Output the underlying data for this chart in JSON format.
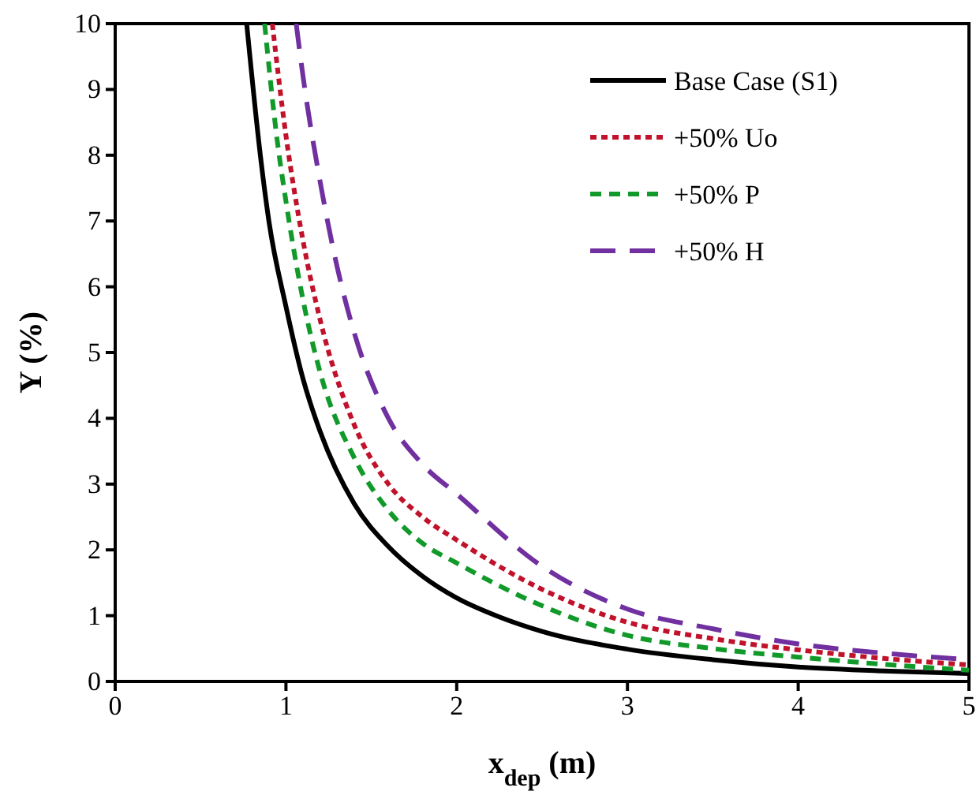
{
  "chart_data": {
    "type": "line",
    "xlabel": "x$_{dep}$ (m)",
    "ylabel": "Y (%)",
    "xlim": [
      0,
      5
    ],
    "ylim": [
      0,
      10
    ],
    "xticks": [
      0,
      1,
      2,
      3,
      4,
      5
    ],
    "yticks": [
      0,
      1,
      2,
      3,
      4,
      5,
      6,
      7,
      8,
      9,
      10
    ],
    "grid": false,
    "legend": "top right",
    "marker": "none",
    "series": [
      {
        "name": "Base Case (S1)",
        "color": "#000000",
        "line_style": "solid",
        "x": [
          0.77,
          0.85,
          0.9,
          1.0,
          1.1,
          1.2,
          1.4,
          1.6,
          1.8,
          2.0,
          2.25,
          2.5,
          3.0,
          3.5,
          4.0,
          4.5,
          5.0
        ],
        "values": [
          10,
          8.0,
          7.0,
          5.7,
          4.6,
          3.8,
          2.7,
          2.05,
          1.6,
          1.27,
          0.98,
          0.76,
          0.49,
          0.33,
          0.22,
          0.16,
          0.12
        ]
      },
      {
        "name": "+50% Uo",
        "color": "#c0132b",
        "line_style": "dotted",
        "x": [
          0.92,
          1.0,
          1.1,
          1.2,
          1.4,
          1.6,
          1.8,
          2.0,
          2.5,
          3.0,
          3.5,
          4.0,
          4.5,
          5.0
        ],
        "values": [
          10,
          8.3,
          6.7,
          5.5,
          3.9,
          3.0,
          2.5,
          2.15,
          1.4,
          0.9,
          0.65,
          0.48,
          0.35,
          0.25
        ]
      },
      {
        "name": "+50% P",
        "color": "#119a2a",
        "line_style": "dashed",
        "x": [
          0.875,
          0.95,
          1.0,
          1.1,
          1.2,
          1.4,
          1.6,
          1.8,
          2.0,
          2.5,
          3.0,
          3.5,
          4.0,
          4.5,
          5.0
        ],
        "values": [
          10,
          8.2,
          7.3,
          5.8,
          4.7,
          3.4,
          2.6,
          2.1,
          1.8,
          1.15,
          0.7,
          0.5,
          0.37,
          0.26,
          0.17
        ]
      },
      {
        "name": "+50% H",
        "color": "#7030a0",
        "line_style": "dashed",
        "x": [
          1.06,
          1.1,
          1.2,
          1.3,
          1.4,
          1.6,
          1.8,
          2.0,
          2.5,
          3.0,
          3.5,
          4.0,
          4.5,
          5.0
        ],
        "values": [
          10,
          9.2,
          7.6,
          6.3,
          5.3,
          4.0,
          3.3,
          2.85,
          1.75,
          1.1,
          0.8,
          0.57,
          0.43,
          0.33
        ]
      }
    ]
  }
}
